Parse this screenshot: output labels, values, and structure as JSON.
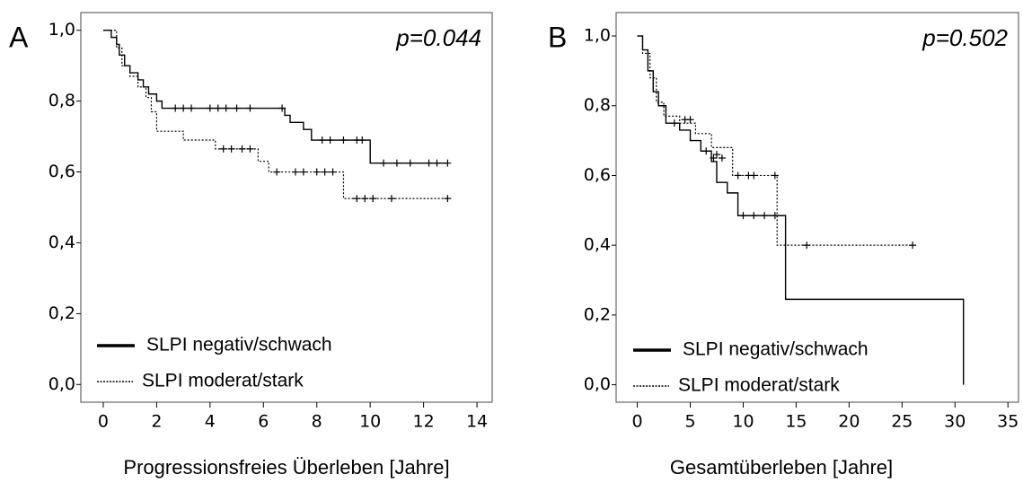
{
  "chart_data": [
    {
      "type": "line",
      "panel": "A",
      "annotation": "p=0.044",
      "xlabel": "Progressionsfreies Überleben [Jahre]",
      "xlim": [
        -0.84,
        14.57
      ],
      "xticks": [
        0,
        2,
        4,
        6,
        8,
        10,
        12,
        14
      ],
      "ylim": [
        -0.05,
        1.05
      ],
      "yticks": [
        {
          "value": 0,
          "label": "0,0"
        },
        {
          "value": 0.2,
          "label": "0,2"
        },
        {
          "value": 0.4,
          "label": "0,4"
        },
        {
          "value": 0.6,
          "label": "0,6"
        },
        {
          "value": 0.8,
          "label": "0,8"
        },
        {
          "value": 1,
          "label": "1,0"
        }
      ],
      "series": [
        {
          "name": "SLPI negativ/schwach",
          "color": "#000000",
          "linestyle": "solid",
          "x": [
            0,
            0.3,
            0.5,
            0.6,
            0.8,
            1.0,
            1.3,
            1.5,
            1.7,
            2.0,
            2.2,
            6.8,
            7.0,
            7.5,
            7.8,
            10.0,
            12.9
          ],
          "values": [
            1.0,
            0.98,
            0.96,
            0.93,
            0.9,
            0.88,
            0.86,
            0.84,
            0.82,
            0.8,
            0.78,
            0.76,
            0.74,
            0.72,
            0.69,
            0.625,
            0.625
          ],
          "censor_x": [
            2.7,
            3.0,
            3.3,
            4.0,
            4.3,
            4.6,
            5.0,
            5.5,
            6.7,
            8.2,
            8.5,
            9.0,
            9.5,
            9.7,
            10.5,
            11.0,
            11.5,
            12.2,
            12.5,
            12.9
          ],
          "censor_values": [
            0.78,
            0.78,
            0.78,
            0.78,
            0.78,
            0.78,
            0.78,
            0.78,
            0.78,
            0.69,
            0.69,
            0.69,
            0.69,
            0.69,
            0.625,
            0.625,
            0.625,
            0.625,
            0.625,
            0.625
          ]
        },
        {
          "name": "SLPI moderat/stark",
          "color": "#000000",
          "linestyle": "dotted",
          "x": [
            0,
            0.5,
            0.7,
            1.0,
            1.3,
            1.6,
            1.8,
            2.0,
            3.0,
            4.2,
            5.8,
            6.2,
            9.0,
            12.9
          ],
          "values": [
            1.0,
            0.95,
            0.9,
            0.87,
            0.84,
            0.81,
            0.77,
            0.715,
            0.69,
            0.665,
            0.63,
            0.6,
            0.525,
            0.525
          ],
          "censor_x": [
            4.5,
            4.8,
            5.2,
            5.5,
            6.5,
            7.2,
            7.5,
            8.0,
            8.3,
            8.6,
            9.5,
            9.8,
            10.1,
            10.8,
            12.9
          ],
          "censor_values": [
            0.665,
            0.665,
            0.665,
            0.665,
            0.6,
            0.6,
            0.6,
            0.6,
            0.6,
            0.6,
            0.525,
            0.525,
            0.525,
            0.525,
            0.525
          ]
        }
      ]
    },
    {
      "type": "line",
      "panel": "B",
      "annotation": "p=0.502",
      "xlabel": "Gesamtüberleben [Jahre]",
      "xlim": [
        -2,
        36
      ],
      "xticks": [
        0,
        5,
        10,
        15,
        20,
        25,
        30,
        35
      ],
      "ylim": [
        -0.05,
        1.067
      ],
      "yticks": [
        {
          "value": 0,
          "label": "0,0"
        },
        {
          "value": 0.2,
          "label": "0,2"
        },
        {
          "value": 0.4,
          "label": "0,4"
        },
        {
          "value": 0.6,
          "label": "0,6"
        },
        {
          "value": 0.8,
          "label": "0,8"
        },
        {
          "value": 1,
          "label": "1,0"
        }
      ],
      "series": [
        {
          "name": "SLPI negativ/schwach",
          "color": "#000000",
          "linestyle": "solid",
          "x": [
            0,
            0.5,
            1.0,
            1.5,
            2.0,
            2.7,
            4.0,
            5.0,
            6.0,
            7.0,
            7.5,
            8.5,
            9.5,
            14.0,
            30.8
          ],
          "values": [
            1.0,
            0.96,
            0.9,
            0.84,
            0.8,
            0.75,
            0.73,
            0.7,
            0.67,
            0.64,
            0.58,
            0.55,
            0.485,
            0.245,
            0
          ],
          "censor_x": [
            3.5,
            6.5,
            7.2,
            10.0,
            11.0,
            12.0,
            13.0
          ],
          "censor_values": [
            0.75,
            0.67,
            0.65,
            0.485,
            0.485,
            0.485,
            0.485
          ]
        },
        {
          "name": "SLPI moderat/stark",
          "color": "#000000",
          "linestyle": "dotted",
          "x": [
            0,
            0.5,
            1.2,
            1.8,
            2.5,
            4.0,
            5.5,
            7.0,
            9.0,
            13.2,
            26.0
          ],
          "values": [
            1.0,
            0.95,
            0.88,
            0.81,
            0.77,
            0.75,
            0.72,
            0.68,
            0.6,
            0.4,
            0.4
          ],
          "censor_x": [
            4.5,
            5.0,
            7.5,
            8.0,
            9.5,
            10.5,
            11.0,
            13.0,
            16.0,
            26.0
          ],
          "censor_values": [
            0.76,
            0.76,
            0.66,
            0.65,
            0.6,
            0.6,
            0.6,
            0.6,
            0.4,
            0.4
          ]
        }
      ]
    }
  ]
}
